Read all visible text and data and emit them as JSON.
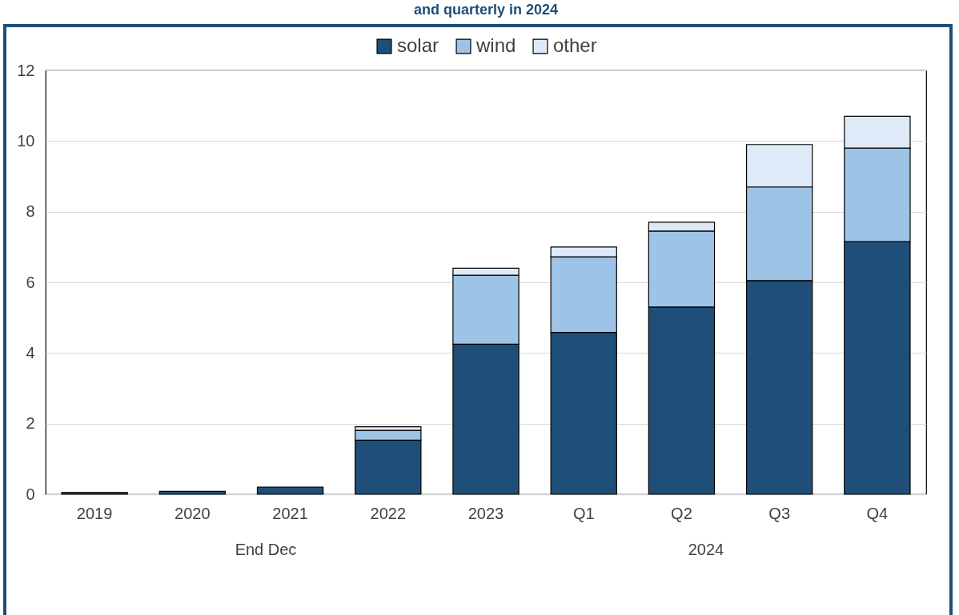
{
  "chart_data": {
    "type": "bar",
    "title": "and quarterly in 2024",
    "stacked": true,
    "categories": [
      "2019",
      "2020",
      "2021",
      "2022",
      "2023",
      "Q1",
      "Q2",
      "Q3",
      "Q4"
    ],
    "series": [
      {
        "name": "solar",
        "color": "#1f4e79",
        "values": [
          0.05,
          0.08,
          0.2,
          1.53,
          4.25,
          4.58,
          5.3,
          6.05,
          7.15
        ]
      },
      {
        "name": "wind",
        "color": "#9dc3e6",
        "values": [
          null,
          null,
          null,
          0.28,
          1.95,
          2.14,
          2.15,
          2.65,
          2.65
        ]
      },
      {
        "name": "other",
        "color": "#deeaf7",
        "values": [
          null,
          null,
          null,
          0.1,
          0.2,
          0.28,
          0.25,
          1.2,
          0.9
        ]
      }
    ],
    "ylim": [
      0,
      12
    ],
    "yticks": [
      0,
      2,
      4,
      6,
      8,
      10,
      12
    ],
    "grid": "y",
    "legend": "top",
    "annotations": [
      "End Dec",
      "2024"
    ]
  }
}
